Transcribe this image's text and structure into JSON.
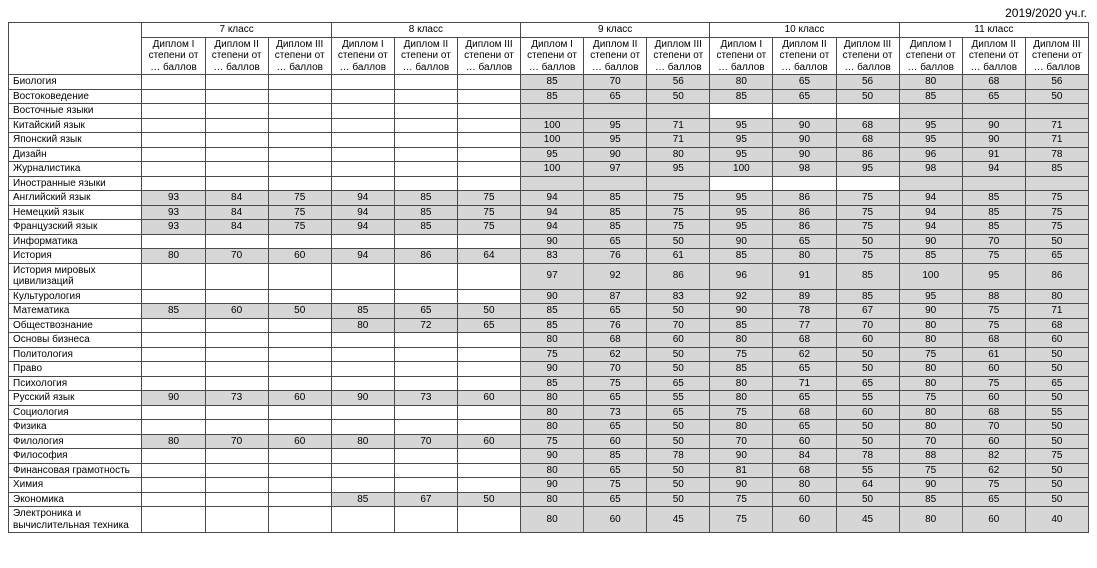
{
  "year_label": "2019/2020 уч.г.",
  "grade_labels": [
    "7 класс",
    "8 класс",
    "9 класс",
    "10 класс",
    "11 класс"
  ],
  "degree_labels": [
    "Диплом I степени от … баллов",
    "Диплом II степени от … баллов",
    "Диплом III степени от … баллов"
  ],
  "shaded_grades": [
    false,
    false,
    true,
    false,
    true
  ],
  "colors": {
    "shaded_bg": "#d6d6d6",
    "border": "#4a4a4a",
    "text": "#000000"
  },
  "subjects": [
    {
      "name": "Биология",
      "v": [
        [
          null,
          null,
          null
        ],
        [
          null,
          null,
          null
        ],
        [
          85,
          70,
          56
        ],
        [
          80,
          65,
          56
        ],
        [
          80,
          68,
          56
        ]
      ]
    },
    {
      "name": "Востоковедение",
      "v": [
        [
          null,
          null,
          null
        ],
        [
          null,
          null,
          null
        ],
        [
          85,
          65,
          50
        ],
        [
          85,
          65,
          50
        ],
        [
          85,
          65,
          50
        ]
      ]
    },
    {
      "name": "Восточные языки",
      "v": [
        [
          null,
          null,
          null
        ],
        [
          null,
          null,
          null
        ],
        [
          null,
          null,
          null
        ],
        [
          null,
          null,
          null
        ],
        [
          null,
          null,
          null
        ]
      ]
    },
    {
      "name": "Китайский язык",
      "v": [
        [
          null,
          null,
          null
        ],
        [
          null,
          null,
          null
        ],
        [
          100,
          95,
          71
        ],
        [
          95,
          90,
          68
        ],
        [
          95,
          90,
          71
        ]
      ]
    },
    {
      "name": "Японский язык",
      "v": [
        [
          null,
          null,
          null
        ],
        [
          null,
          null,
          null
        ],
        [
          100,
          95,
          71
        ],
        [
          95,
          90,
          68
        ],
        [
          95,
          90,
          71
        ]
      ]
    },
    {
      "name": "Дизайн",
      "v": [
        [
          null,
          null,
          null
        ],
        [
          null,
          null,
          null
        ],
        [
          95,
          90,
          80
        ],
        [
          95,
          90,
          86
        ],
        [
          96,
          91,
          78
        ]
      ]
    },
    {
      "name": "Журналистика",
      "v": [
        [
          null,
          null,
          null
        ],
        [
          null,
          null,
          null
        ],
        [
          100,
          97,
          95
        ],
        [
          100,
          98,
          95
        ],
        [
          98,
          94,
          85
        ]
      ]
    },
    {
      "name": "Иностранные языки",
      "v": [
        [
          null,
          null,
          null
        ],
        [
          null,
          null,
          null
        ],
        [
          null,
          null,
          null
        ],
        [
          null,
          null,
          null
        ],
        [
          null,
          null,
          null
        ]
      ]
    },
    {
      "name": "Английский язык",
      "v": [
        [
          93,
          84,
          75
        ],
        [
          94,
          85,
          75
        ],
        [
          94,
          85,
          75
        ],
        [
          95,
          86,
          75
        ],
        [
          94,
          85,
          75
        ]
      ]
    },
    {
      "name": "Немецкий язык",
      "v": [
        [
          93,
          84,
          75
        ],
        [
          94,
          85,
          75
        ],
        [
          94,
          85,
          75
        ],
        [
          95,
          86,
          75
        ],
        [
          94,
          85,
          75
        ]
      ]
    },
    {
      "name": "Французский язык",
      "v": [
        [
          93,
          84,
          75
        ],
        [
          94,
          85,
          75
        ],
        [
          94,
          85,
          75
        ],
        [
          95,
          86,
          75
        ],
        [
          94,
          85,
          75
        ]
      ]
    },
    {
      "name": "Информатика",
      "v": [
        [
          null,
          null,
          null
        ],
        [
          null,
          null,
          null
        ],
        [
          90,
          65,
          50
        ],
        [
          90,
          65,
          50
        ],
        [
          90,
          70,
          50
        ]
      ]
    },
    {
      "name": "История",
      "v": [
        [
          80,
          70,
          60
        ],
        [
          94,
          86,
          64
        ],
        [
          83,
          76,
          61
        ],
        [
          85,
          80,
          75
        ],
        [
          85,
          75,
          65
        ]
      ]
    },
    {
      "name": "История мировых цивилизаций",
      "v": [
        [
          null,
          null,
          null
        ],
        [
          null,
          null,
          null
        ],
        [
          97,
          92,
          86
        ],
        [
          96,
          91,
          85
        ],
        [
          100,
          95,
          86
        ]
      ]
    },
    {
      "name": "Культурология",
      "v": [
        [
          null,
          null,
          null
        ],
        [
          null,
          null,
          null
        ],
        [
          90,
          87,
          83
        ],
        [
          92,
          89,
          85
        ],
        [
          95,
          88,
          80
        ]
      ]
    },
    {
      "name": "Математика",
      "v": [
        [
          85,
          60,
          50
        ],
        [
          85,
          65,
          50
        ],
        [
          85,
          65,
          50
        ],
        [
          90,
          78,
          67
        ],
        [
          90,
          75,
          71
        ]
      ]
    },
    {
      "name": "Обществознание",
      "v": [
        [
          null,
          null,
          null
        ],
        [
          80,
          72,
          65
        ],
        [
          85,
          76,
          70
        ],
        [
          85,
          77,
          70
        ],
        [
          80,
          75,
          68
        ]
      ]
    },
    {
      "name": "Основы бизнеса",
      "v": [
        [
          null,
          null,
          null
        ],
        [
          null,
          null,
          null
        ],
        [
          80,
          68,
          60
        ],
        [
          80,
          68,
          60
        ],
        [
          80,
          68,
          60
        ]
      ]
    },
    {
      "name": "Политология",
      "v": [
        [
          null,
          null,
          null
        ],
        [
          null,
          null,
          null
        ],
        [
          75,
          62,
          50
        ],
        [
          75,
          62,
          50
        ],
        [
          75,
          61,
          50
        ]
      ]
    },
    {
      "name": "Право",
      "v": [
        [
          null,
          null,
          null
        ],
        [
          null,
          null,
          null
        ],
        [
          90,
          70,
          50
        ],
        [
          85,
          65,
          50
        ],
        [
          80,
          60,
          50
        ]
      ]
    },
    {
      "name": "Психология",
      "v": [
        [
          null,
          null,
          null
        ],
        [
          null,
          null,
          null
        ],
        [
          85,
          75,
          65
        ],
        [
          80,
          71,
          65
        ],
        [
          80,
          75,
          65
        ]
      ]
    },
    {
      "name": "Русский язык",
      "v": [
        [
          90,
          73,
          60
        ],
        [
          90,
          73,
          60
        ],
        [
          80,
          65,
          55
        ],
        [
          80,
          65,
          55
        ],
        [
          75,
          60,
          50
        ]
      ]
    },
    {
      "name": "Социология",
      "v": [
        [
          null,
          null,
          null
        ],
        [
          null,
          null,
          null
        ],
        [
          80,
          73,
          65
        ],
        [
          75,
          68,
          60
        ],
        [
          80,
          68,
          55
        ]
      ]
    },
    {
      "name": "Физика",
      "v": [
        [
          null,
          null,
          null
        ],
        [
          null,
          null,
          null
        ],
        [
          80,
          65,
          50
        ],
        [
          80,
          65,
          50
        ],
        [
          80,
          70,
          50
        ]
      ]
    },
    {
      "name": "Филология",
      "v": [
        [
          80,
          70,
          60
        ],
        [
          80,
          70,
          60
        ],
        [
          75,
          60,
          50
        ],
        [
          70,
          60,
          50
        ],
        [
          70,
          60,
          50
        ]
      ]
    },
    {
      "name": "Философия",
      "v": [
        [
          null,
          null,
          null
        ],
        [
          null,
          null,
          null
        ],
        [
          90,
          85,
          78
        ],
        [
          90,
          84,
          78
        ],
        [
          88,
          82,
          75
        ]
      ]
    },
    {
      "name": "Финансовая грамотность",
      "v": [
        [
          null,
          null,
          null
        ],
        [
          null,
          null,
          null
        ],
        [
          80,
          65,
          50
        ],
        [
          81,
          68,
          55
        ],
        [
          75,
          62,
          50
        ]
      ]
    },
    {
      "name": "Химия",
      "v": [
        [
          null,
          null,
          null
        ],
        [
          null,
          null,
          null
        ],
        [
          90,
          75,
          50
        ],
        [
          90,
          80,
          64
        ],
        [
          90,
          75,
          50
        ]
      ]
    },
    {
      "name": "Экономика",
      "v": [
        [
          null,
          null,
          null
        ],
        [
          85,
          67,
          50
        ],
        [
          80,
          65,
          50
        ],
        [
          75,
          60,
          50
        ],
        [
          85,
          65,
          50
        ]
      ]
    },
    {
      "name": "Электроника и вычислительная техника",
      "v": [
        [
          null,
          null,
          null
        ],
        [
          null,
          null,
          null
        ],
        [
          80,
          60,
          45
        ],
        [
          75,
          60,
          45
        ],
        [
          80,
          60,
          40
        ]
      ]
    }
  ]
}
